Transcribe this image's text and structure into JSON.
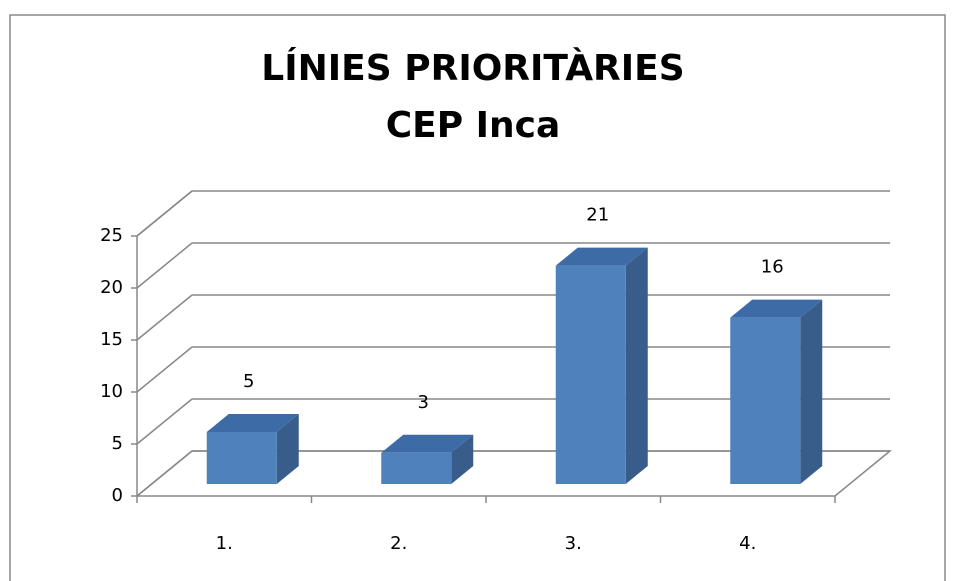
{
  "chart_data": {
    "type": "bar3d",
    "title": "LÍNIES PRIORITÀRIES",
    "subtitle": "CEP Inca",
    "categories": [
      "1.",
      "2.",
      "3.",
      "4."
    ],
    "values": [
      5,
      3,
      21,
      16
    ],
    "color": "#4f81bd",
    "ylim": [
      0,
      25
    ],
    "yticks": [
      0,
      5,
      10,
      15,
      20,
      25
    ],
    "grid": true
  }
}
